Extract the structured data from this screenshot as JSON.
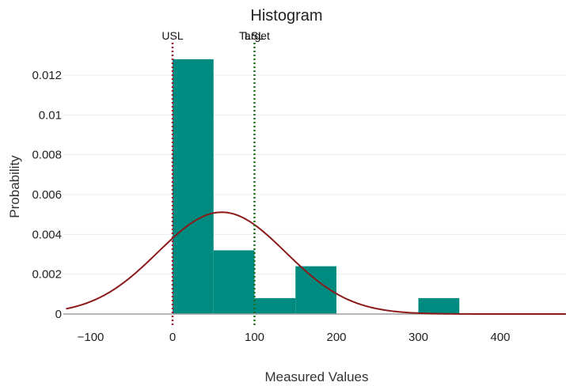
{
  "chart_data": {
    "type": "bar",
    "title": "Histogram",
    "xlabel": "Measured Values",
    "ylabel": "Probability",
    "xlim": [
      -130,
      480
    ],
    "ylim": [
      0,
      0.0135
    ],
    "x_ticks": [
      -100,
      0,
      100,
      200,
      300,
      400
    ],
    "y_ticks": [
      0,
      0.002,
      0.004,
      0.006,
      0.008,
      0.01,
      0.012
    ],
    "y_tick_labels": [
      "0",
      "0.002",
      "0.004",
      "0.006",
      "0.008",
      "0.01",
      "0.012"
    ],
    "grid": "horizontal",
    "legend": "none",
    "bins": [
      {
        "x0": 0,
        "x1": 50,
        "value": 0.0128
      },
      {
        "x0": 50,
        "x1": 100,
        "value": 0.0032
      },
      {
        "x0": 100,
        "x1": 150,
        "value": 0.0008
      },
      {
        "x0": 150,
        "x1": 200,
        "value": 0.0024
      },
      {
        "x0": 300,
        "x1": 350,
        "value": 0.0008
      }
    ],
    "normal_curve": {
      "mean": 60,
      "sd": 78
    },
    "spec_lines": [
      {
        "label": "USL",
        "x": 0,
        "color": "#9b1c31"
      },
      {
        "label": "LSL",
        "x": 100,
        "color": "#1e6b1e"
      },
      {
        "label": "Target",
        "x": 100,
        "color": "#1e6b1e"
      }
    ],
    "colors": {
      "bar": "#008b80",
      "curve": "#8b1a1a",
      "axis": "#9e9e9e",
      "grid": "#ececec"
    }
  }
}
